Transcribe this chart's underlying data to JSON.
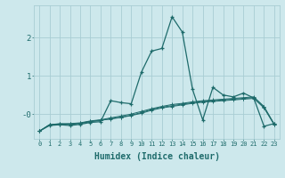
{
  "x": [
    0,
    1,
    2,
    3,
    4,
    5,
    6,
    7,
    8,
    9,
    10,
    11,
    12,
    13,
    14,
    15,
    16,
    17,
    18,
    19,
    20,
    21,
    22,
    23
  ],
  "line1": [
    -0.45,
    -0.3,
    -0.28,
    -0.3,
    -0.27,
    -0.22,
    -0.2,
    0.35,
    0.3,
    0.27,
    1.1,
    1.65,
    1.72,
    2.55,
    2.15,
    0.65,
    -0.15,
    0.7,
    0.5,
    0.45,
    0.55,
    0.42,
    -0.32,
    -0.25
  ],
  "line2": [
    -0.45,
    -0.28,
    -0.25,
    -0.25,
    -0.23,
    -0.18,
    -0.15,
    -0.1,
    -0.05,
    0.0,
    0.07,
    0.14,
    0.2,
    0.25,
    0.28,
    0.32,
    0.35,
    0.37,
    0.39,
    0.41,
    0.43,
    0.45,
    0.2,
    -0.26
  ],
  "line3": [
    -0.45,
    -0.28,
    -0.26,
    -0.27,
    -0.25,
    -0.2,
    -0.17,
    -0.12,
    -0.08,
    -0.03,
    0.04,
    0.12,
    0.18,
    0.22,
    0.26,
    0.3,
    0.33,
    0.35,
    0.37,
    0.39,
    0.41,
    0.43,
    0.18,
    -0.27
  ],
  "line4": [
    -0.45,
    -0.28,
    -0.27,
    -0.26,
    -0.24,
    -0.19,
    -0.16,
    -0.13,
    -0.09,
    -0.04,
    0.02,
    0.1,
    0.16,
    0.2,
    0.24,
    0.28,
    0.31,
    0.33,
    0.35,
    0.37,
    0.39,
    0.41,
    0.16,
    -0.28
  ],
  "background_color": "#cde8ec",
  "grid_color": "#a8cdd4",
  "line_color": "#1e6b6b",
  "xlabel": "Humidex (Indice chaleur)",
  "xlabel_fontsize": 7,
  "ylim": [
    -0.65,
    2.85
  ],
  "xlim": [
    -0.5,
    23.5
  ]
}
